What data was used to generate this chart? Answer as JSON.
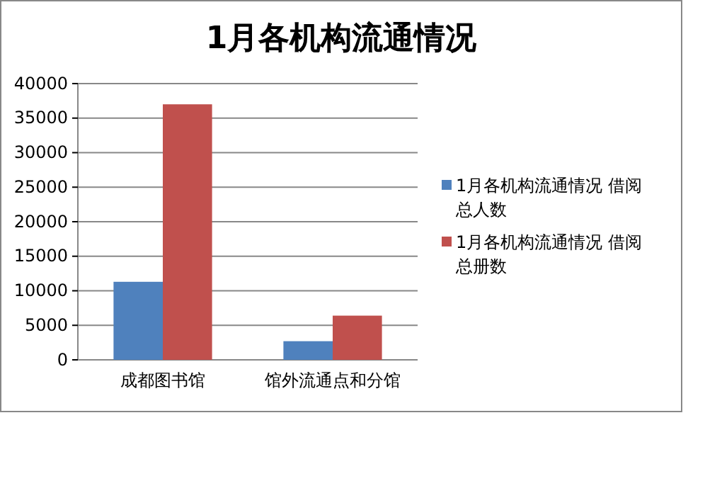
{
  "chart_data": {
    "type": "bar",
    "title": "1月各机构流通情况",
    "categories": [
      "成都图书馆",
      "馆外流通点和分馆"
    ],
    "series": [
      {
        "name": "1月各机构流通情况 借阅总人数",
        "color": "#4f81bd",
        "values": [
          11300,
          2700
        ]
      },
      {
        "name": "1月各机构流通情况 借阅总册数",
        "color": "#c0504d",
        "values": [
          37000,
          6400
        ]
      }
    ],
    "ylim": [
      0,
      40000
    ],
    "yticks": [
      0,
      5000,
      10000,
      15000,
      20000,
      25000,
      30000,
      35000,
      40000
    ],
    "grid": "y",
    "legend": "right"
  }
}
